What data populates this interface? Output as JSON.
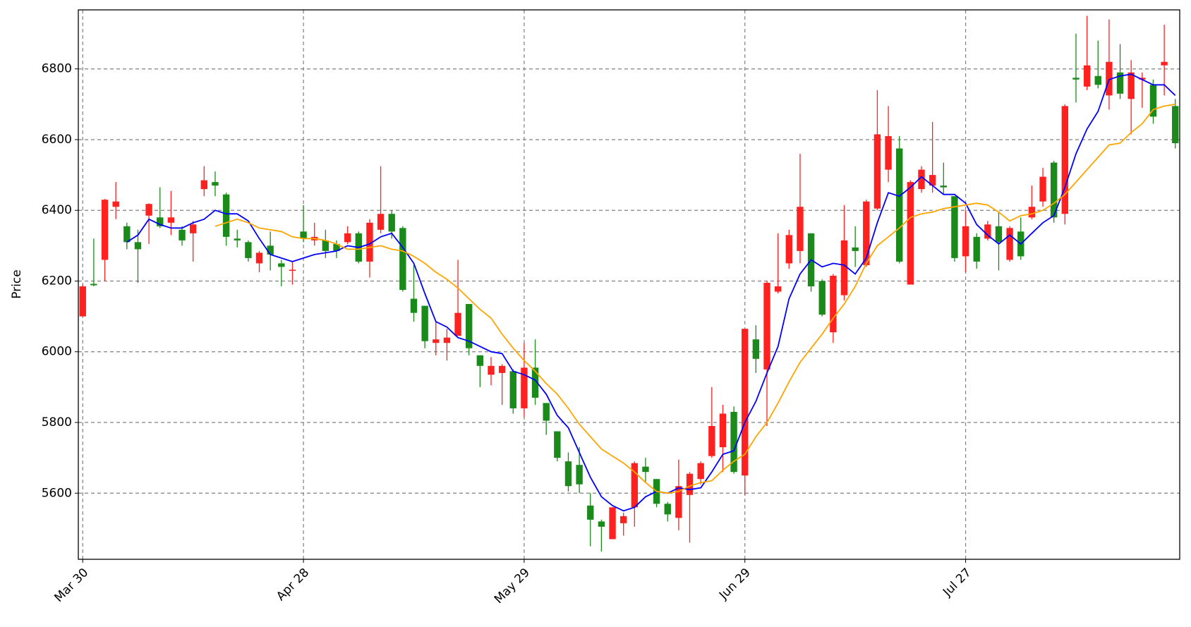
{
  "chart_data": {
    "type": "candlestick",
    "ylabel": "Price",
    "categories": [
      "Mar 30",
      null,
      null,
      null,
      null,
      null,
      null,
      null,
      null,
      null,
      null,
      null,
      null,
      null,
      null,
      null,
      null,
      null,
      null,
      null,
      "Apr 28",
      null,
      null,
      null,
      null,
      null,
      null,
      null,
      null,
      null,
      null,
      null,
      null,
      null,
      null,
      null,
      null,
      null,
      null,
      null,
      "May 29",
      null,
      null,
      null,
      null,
      null,
      null,
      null,
      null,
      null,
      null,
      null,
      null,
      null,
      null,
      null,
      null,
      null,
      null,
      null,
      "Jun 29",
      null,
      null,
      null,
      null,
      null,
      null,
      null,
      null,
      null,
      null,
      null,
      null,
      null,
      null,
      null,
      null,
      null,
      null,
      null,
      "Jul 27",
      null,
      null,
      null,
      null,
      null,
      null,
      null,
      null,
      null,
      null,
      null,
      null,
      null,
      null,
      null,
      null,
      null,
      null,
      null
    ],
    "open": [
      6100,
      6192,
      6260,
      6410,
      6355,
      6310,
      6385,
      6380,
      6365,
      6345,
      6335,
      6460,
      6480,
      6445,
      6320,
      6310,
      6250,
      6300,
      6250,
      6230,
      6340,
      6315,
      6315,
      6305,
      6310,
      6335,
      6255,
      6345,
      6390,
      6350,
      6150,
      6130,
      6025,
      6025,
      6045,
      6135,
      5990,
      5935,
      5940,
      5945,
      5840,
      5955,
      5855,
      5775,
      5690,
      5680,
      5565,
      5520,
      5470,
      5515,
      5560,
      5675,
      5640,
      5570,
      5530,
      5595,
      5640,
      5705,
      5730,
      5830,
      5650,
      6035,
      5950,
      6170,
      6250,
      6285,
      6335,
      6200,
      6055,
      6160,
      6295,
      6245,
      6405,
      6515,
      6575,
      6190,
      6460,
      6470,
      6470,
      6440,
      6270,
      6325,
      6320,
      6355,
      6260,
      6340,
      6380,
      6425,
      6535,
      6390,
      6775,
      6750,
      6780,
      6725,
      6790,
      6715,
      6770,
      6755,
      6810,
      6695
    ],
    "high": [
      6190,
      6320,
      6432,
      6480,
      6365,
      6345,
      6420,
      6465,
      6455,
      6355,
      6370,
      6525,
      6510,
      6450,
      6345,
      6315,
      6285,
      6340,
      6260,
      6255,
      6415,
      6365,
      6345,
      6315,
      6355,
      6340,
      6375,
      6525,
      6400,
      6355,
      6245,
      6130,
      6085,
      6065,
      6260,
      6135,
      5990,
      5985,
      5965,
      5950,
      6025,
      6035,
      5855,
      5775,
      5715,
      5730,
      5600,
      5525,
      5560,
      5545,
      5690,
      5700,
      5640,
      5575,
      5695,
      5660,
      5690,
      5900,
      5850,
      5845,
      6065,
      6075,
      6200,
      6335,
      6345,
      6560,
      6335,
      6205,
      6220,
      6415,
      6355,
      6430,
      6740,
      6695,
      6610,
      6485,
      6525,
      6650,
      6535,
      6440,
      6400,
      6335,
      6370,
      6395,
      6355,
      6380,
      6470,
      6520,
      6540,
      6700,
      6900,
      6950,
      6880,
      6940,
      6870,
      6825,
      6790,
      6770,
      6925,
      6715
    ],
    "low": [
      6100,
      6185,
      6200,
      6375,
      6290,
      6195,
      6305,
      6350,
      6330,
      6300,
      6255,
      6440,
      6440,
      6300,
      6295,
      6255,
      6225,
      6230,
      6185,
      6190,
      6310,
      6300,
      6265,
      6265,
      6305,
      6250,
      6210,
      6335,
      6320,
      6170,
      6085,
      6010,
      5990,
      5975,
      6045,
      5990,
      5900,
      5905,
      5850,
      5825,
      5815,
      5850,
      5765,
      5690,
      5605,
      5600,
      5450,
      5435,
      5470,
      5480,
      5505,
      5630,
      5560,
      5520,
      5495,
      5460,
      5625,
      5700,
      5660,
      5655,
      5595,
      5940,
      5790,
      6165,
      6235,
      6250,
      6170,
      6100,
      6025,
      6145,
      6240,
      6240,
      6400,
      6480,
      6250,
      6190,
      6450,
      6450,
      6445,
      6255,
      6225,
      6235,
      6315,
      6230,
      6255,
      6260,
      6375,
      6410,
      6365,
      6360,
      6705,
      6740,
      6745,
      6685,
      6715,
      6615,
      6690,
      6645,
      6725,
      6575
    ],
    "close": [
      6185,
      6188,
      6430,
      6425,
      6310,
      6290,
      6418,
      6355,
      6380,
      6315,
      6360,
      6485,
      6470,
      6325,
      6315,
      6265,
      6280,
      6275,
      6240,
      6232,
      6320,
      6325,
      6285,
      6285,
      6335,
      6255,
      6365,
      6390,
      6340,
      6175,
      6110,
      6030,
      6035,
      6040,
      6110,
      6010,
      5960,
      5960,
      5960,
      5840,
      5955,
      5870,
      5805,
      5700,
      5620,
      5625,
      5525,
      5505,
      5560,
      5535,
      5685,
      5660,
      5570,
      5540,
      5620,
      5655,
      5685,
      5790,
      5825,
      5660,
      6065,
      5980,
      6195,
      6185,
      6330,
      6410,
      6185,
      6105,
      6215,
      6315,
      6285,
      6425,
      6615,
      6610,
      6255,
      6480,
      6515,
      6500,
      6465,
      6265,
      6355,
      6255,
      6360,
      6310,
      6350,
      6270,
      6410,
      6495,
      6380,
      6695,
      6770,
      6810,
      6755,
      6820,
      6730,
      6790,
      6775,
      6665,
      6820,
      6590
    ],
    "up_color": "#ff2020",
    "down_color": "#1a8a1a",
    "series": [
      {
        "color": "#0000ff",
        "values": [
          null,
          null,
          null,
          null,
          6310,
          6330,
          6375,
          6360,
          6350,
          6350,
          6365,
          6375,
          6400,
          6390,
          6390,
          6370,
          6320,
          6275,
          6265,
          6255,
          6265,
          6275,
          6280,
          6285,
          6300,
          6295,
          6305,
          6325,
          6335,
          6295,
          6250,
          6165,
          6085,
          6070,
          6040,
          6030,
          6015,
          6000,
          5995,
          5945,
          5935,
          5920,
          5880,
          5820,
          5785,
          5715,
          5645,
          5590,
          5565,
          5550,
          5560,
          5590,
          5605,
          5600,
          5615,
          5610,
          5615,
          5660,
          5710,
          5720,
          5800,
          5860,
          5940,
          6015,
          6150,
          6220,
          6260,
          6240,
          6250,
          6245,
          6220,
          6265,
          6365,
          6450,
          6440,
          6465,
          6495,
          6470,
          6445,
          6445,
          6420,
          6360,
          6330,
          6305,
          6330,
          6305,
          6335,
          6365,
          6385,
          6465,
          6560,
          6630,
          6680,
          6770,
          6780,
          6785,
          6770,
          6755,
          6755,
          6725
        ]
      },
      {
        "color": "#ffa500",
        "values": [
          null,
          null,
          null,
          null,
          null,
          null,
          null,
          null,
          null,
          null,
          null,
          null,
          6355,
          6365,
          6375,
          6365,
          6350,
          6345,
          6340,
          6325,
          6320,
          6320,
          6315,
          6305,
          6290,
          6290,
          6295,
          6300,
          6290,
          6285,
          6270,
          6250,
          6225,
          6205,
          6180,
          6150,
          6120,
          6095,
          6050,
          6010,
          5975,
          5945,
          5910,
          5880,
          5840,
          5795,
          5760,
          5725,
          5705,
          5685,
          5660,
          5630,
          5605,
          5600,
          5605,
          5620,
          5630,
          5635,
          5665,
          5690,
          5710,
          5760,
          5800,
          5855,
          5915,
          5970,
          6010,
          6050,
          6095,
          6135,
          6185,
          6250,
          6300,
          6325,
          6350,
          6380,
          6390,
          6395,
          6405,
          6410,
          6415,
          6420,
          6415,
          6395,
          6370,
          6385,
          6390,
          6400,
          6420,
          6445,
          6480,
          6515,
          6550,
          6585,
          6590,
          6620,
          6645,
          6685,
          6695,
          6700
        ]
      }
    ],
    "xlim": [
      -0.4,
      99.4
    ],
    "ylim": [
      5413,
      6967
    ],
    "yticks": [
      5600,
      5800,
      6000,
      6200,
      6400,
      6600,
      6800
    ],
    "grid": true
  }
}
